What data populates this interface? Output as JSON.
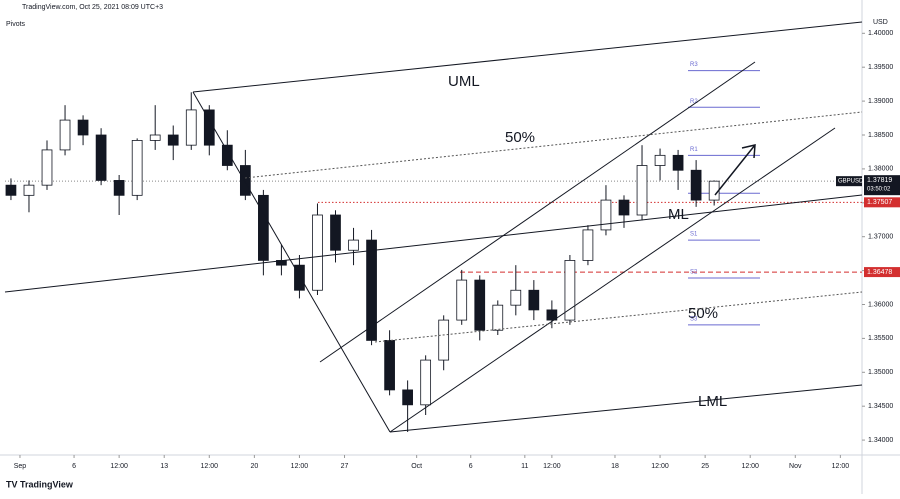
{
  "header": {
    "source": "TradingView.com, Oct 25, 2021 08:09 UTC+3",
    "indicator": "Pivots",
    "currency": "USD",
    "logo": "TradingView"
  },
  "chart_data": {
    "type": "candlestick",
    "symbol": "GBPUSD",
    "x": [
      -0.5,
      0.5,
      1.5,
      2.5,
      3.5,
      4.5,
      5.5,
      6.5,
      7.5,
      8.5,
      9.5,
      10.5,
      11.5,
      12.5,
      13.5,
      14.5,
      15.5,
      16.5,
      17.5,
      18.5,
      19.5,
      20.5,
      21.5,
      22.5,
      23.5,
      24.5,
      25.5,
      26.5,
      27.5,
      28.5,
      29.5,
      30.5,
      31.5,
      32.5,
      33.5,
      34.5,
      35.5,
      36.5,
      37.5,
      38.5
    ],
    "open": [
      1.3776,
      1.3761,
      1.3776,
      1.3828,
      1.3872,
      1.385,
      1.3783,
      1.3761,
      1.3842,
      1.385,
      1.3835,
      1.3887,
      1.3835,
      1.3805,
      1.3761,
      1.3665,
      1.3658,
      1.3621,
      1.3732,
      1.368,
      1.3695,
      1.3547,
      1.3474,
      1.3452,
      1.3518,
      1.3577,
      1.3636,
      1.3562,
      1.3599,
      1.3621,
      1.3592,
      1.3577,
      1.3665,
      1.371,
      1.3754,
      1.3732,
      1.3805,
      1.382,
      1.3798,
      1.3754
    ],
    "high": [
      1.3786,
      1.3783,
      1.3842,
      1.3894,
      1.3879,
      1.386,
      1.3791,
      1.3845,
      1.3894,
      1.3864,
      1.3913,
      1.3894,
      1.3857,
      1.3828,
      1.3769,
      1.3688,
      1.3673,
      1.3749,
      1.3739,
      1.3713,
      1.371,
      1.3562,
      1.3488,
      1.3525,
      1.3584,
      1.3651,
      1.3643,
      1.3606,
      1.3658,
      1.3636,
      1.3606,
      1.3673,
      1.3717,
      1.3776,
      1.3761,
      1.3835,
      1.383,
      1.3828,
      1.3813,
      1.3783
    ],
    "low": [
      1.3754,
      1.3736,
      1.3769,
      1.382,
      1.3835,
      1.3776,
      1.3732,
      1.3754,
      1.3828,
      1.3813,
      1.3828,
      1.382,
      1.3798,
      1.3754,
      1.3643,
      1.3643,
      1.3609,
      1.3614,
      1.3662,
      1.3658,
      1.354,
      1.3466,
      1.3412,
      1.3437,
      1.3503,
      1.357,
      1.3547,
      1.3555,
      1.3584,
      1.3577,
      1.3565,
      1.357,
      1.3658,
      1.3702,
      1.3713,
      1.3724,
      1.3783,
      1.3769,
      1.3744,
      1.3746
    ],
    "close": [
      1.3761,
      1.3776,
      1.3828,
      1.3872,
      1.385,
      1.3783,
      1.3761,
      1.3842,
      1.385,
      1.3835,
      1.3887,
      1.3835,
      1.3805,
      1.3761,
      1.3665,
      1.3658,
      1.3621,
      1.3732,
      1.368,
      1.3695,
      1.3547,
      1.3474,
      1.3452,
      1.3518,
      1.3577,
      1.3636,
      1.3562,
      1.3599,
      1.3621,
      1.3592,
      1.3577,
      1.3665,
      1.371,
      1.3754,
      1.3732,
      1.3805,
      1.382,
      1.3798,
      1.3754,
      1.37819
    ],
    "up_color": "#ffffff",
    "down_color": "#131722",
    "xlim": [
      -0.83,
      46.7
    ],
    "ylim": [
      1.3378,
      1.4027
    ],
    "xticks": [
      {
        "value": 0,
        "label": "Sep"
      },
      {
        "value": 3,
        "label": "6"
      },
      {
        "value": 5.5,
        "label": "12:00"
      },
      {
        "value": 8,
        "label": "13"
      },
      {
        "value": 10.5,
        "label": "12:00"
      },
      {
        "value": 13,
        "label": "20"
      },
      {
        "value": 15.5,
        "label": "12:00"
      },
      {
        "value": 18,
        "label": "27"
      },
      {
        "value": 22,
        "label": "Oct"
      },
      {
        "value": 25,
        "label": "6"
      },
      {
        "value": 28,
        "label": "11"
      },
      {
        "value": 29.5,
        "label": "12:00"
      },
      {
        "value": 33,
        "label": "18"
      },
      {
        "value": 35.5,
        "label": "12:00"
      },
      {
        "value": 38,
        "label": "25"
      },
      {
        "value": 40.5,
        "label": "12:00"
      },
      {
        "value": 43,
        "label": "Nov"
      },
      {
        "value": 45.5,
        "label": "12:00"
      }
    ],
    "yticks": [
      {
        "value": 1.4,
        "label": "1.40000"
      },
      {
        "value": 1.395,
        "label": "1.39500"
      },
      {
        "value": 1.39,
        "label": "1.39000"
      },
      {
        "value": 1.385,
        "label": "1.38500"
      },
      {
        "value": 1.38,
        "label": "1.38000"
      },
      {
        "value": 1.375,
        "label": "1.37500"
      },
      {
        "value": 1.37,
        "label": "1.37000"
      },
      {
        "value": 1.365,
        "label": "1.36500"
      },
      {
        "value": 1.36,
        "label": "1.36000"
      },
      {
        "value": 1.355,
        "label": "1.35500"
      },
      {
        "value": 1.35,
        "label": "1.35000"
      },
      {
        "value": 1.345,
        "label": "1.34500"
      },
      {
        "value": 1.34,
        "label": "1.34000"
      }
    ],
    "last_price": 1.37819,
    "countdown": "03:50:02",
    "levels": [
      {
        "value": 1.37507,
        "color": "#d32f2f",
        "style": "dotted"
      },
      {
        "value": 1.36478,
        "color": "#d32f2f",
        "style": "dashed"
      }
    ],
    "pivots": {
      "labels": [
        "R3",
        "R2",
        "R1",
        null,
        "S1",
        "S2",
        "S3"
      ],
      "values": [
        1.3945,
        1.3891,
        1.382,
        1.3764,
        1.3695,
        1.3639,
        1.357
      ],
      "color": "#6a6ad0"
    },
    "annotations": [
      "UML",
      "50%",
      "ML",
      "50%",
      "LML"
    ]
  }
}
